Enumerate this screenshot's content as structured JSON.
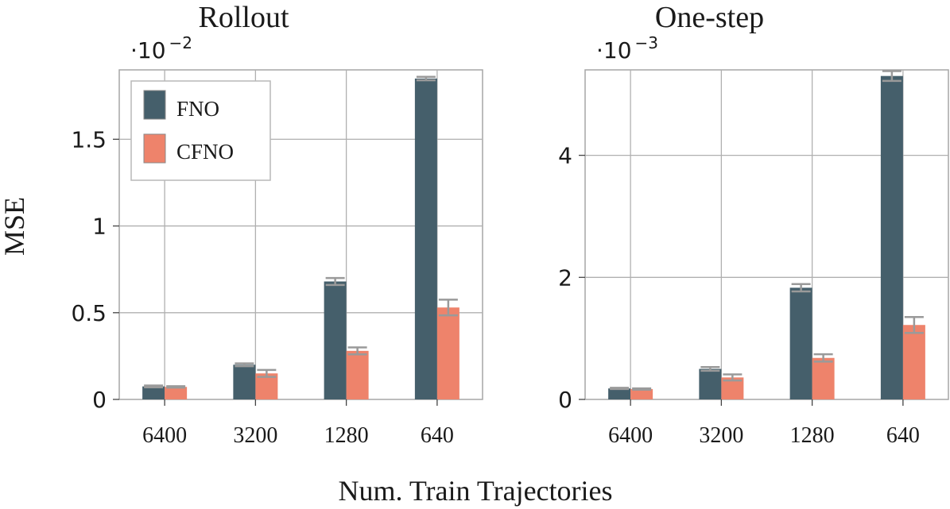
{
  "figure": {
    "ylabel": "MSE",
    "xlabel": "Num. Train Trajectories",
    "colors": {
      "FNO": "#455f6b",
      "CFNO": "#ee836b",
      "error_bar": "#9a9a9a",
      "grid": "#b0b0b0",
      "frame": "#a6a6a6"
    }
  },
  "legend": {
    "placement": "upper-left of left panel",
    "entries": [
      "FNO",
      "CFNO"
    ]
  },
  "chart_data": [
    {
      "type": "bar",
      "title": "Rollout",
      "scale_label": "·10⁻²",
      "scale_base": "·10",
      "scale_exp": "−2",
      "categories": [
        "6400",
        "3200",
        "1280",
        "640"
      ],
      "ylim": [
        0,
        1.9
      ],
      "yticks": [
        0,
        0.5,
        1,
        1.5
      ],
      "ytick_labels": [
        "0",
        "0.5",
        "1",
        "1.5"
      ],
      "grid": true,
      "series": [
        {
          "name": "FNO",
          "values": [
            0.075,
            0.2,
            0.68,
            1.85
          ],
          "errors": [
            0.005,
            0.008,
            0.02,
            0.01
          ]
        },
        {
          "name": "CFNO",
          "values": [
            0.072,
            0.15,
            0.28,
            0.53
          ],
          "errors": [
            0.004,
            0.02,
            0.02,
            0.045
          ]
        }
      ]
    },
    {
      "type": "bar",
      "title": "One-step",
      "scale_label": "·10⁻³",
      "scale_base": "·10",
      "scale_exp": "−3",
      "categories": [
        "6400",
        "3200",
        "1280",
        "640"
      ],
      "ylim": [
        0,
        5.4
      ],
      "yticks": [
        0,
        2,
        4
      ],
      "ytick_labels": [
        "0",
        "2",
        "4"
      ],
      "grid": true,
      "series": [
        {
          "name": "FNO",
          "values": [
            0.18,
            0.5,
            1.83,
            5.3
          ],
          "errors": [
            0.01,
            0.03,
            0.06,
            0.08
          ]
        },
        {
          "name": "CFNO",
          "values": [
            0.17,
            0.36,
            0.68,
            1.22
          ],
          "errors": [
            0.01,
            0.05,
            0.06,
            0.13
          ]
        }
      ]
    }
  ]
}
